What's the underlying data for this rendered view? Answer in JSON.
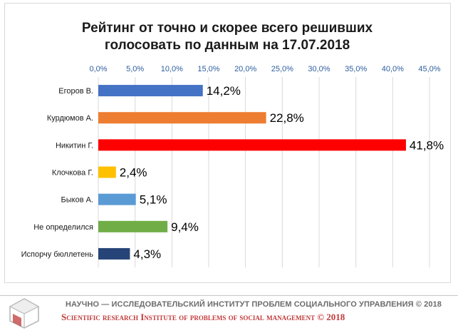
{
  "chart_data": {
    "type": "bar",
    "orientation": "horizontal",
    "title": [
      "Рейтинг от точно и скорее всего решивших",
      "голосовать по данным на 17.07.2018"
    ],
    "categories": [
      "Егоров В.",
      "Курдюмов А.",
      "Никитин Г.",
      "Клочкова Г.",
      "Быков А.",
      "Не определился",
      "Испорчу бюллетень"
    ],
    "values": [
      14.2,
      22.8,
      41.8,
      2.4,
      5.1,
      9.4,
      4.3
    ],
    "value_labels": [
      "14,2%",
      "22,8%",
      "41,8%",
      "2,4%",
      "5,1%",
      "9,4%",
      "4,3%"
    ],
    "colors": [
      "#4472c4",
      "#ed7d31",
      "#ff0000",
      "#ffc000",
      "#5b9bd5",
      "#70ad47",
      "#264478"
    ],
    "xlim": [
      0,
      45
    ],
    "x_ticks": [
      0,
      5,
      10,
      15,
      20,
      25,
      30,
      35,
      40,
      45
    ],
    "x_tick_labels": [
      "0,0%",
      "5,0%",
      "10,0%",
      "15,0%",
      "20,0%",
      "25,0%",
      "30,0%",
      "35,0%",
      "40,0%",
      "45,0%"
    ],
    "x_axis_position": "top",
    "grid": true,
    "legend": false
  },
  "footer": {
    "ru": "НАУЧНО — ИССЛЕДОВАТЕЛЬСКИЙ ИНСТИТУТ ПРОБЛЕМ СОЦИАЛЬНОГО УПРАВЛЕНИЯ © 2018",
    "en": "Scientific research Institute of problems of social management © 2018",
    "logo_icon": "cube-logo-icon"
  }
}
